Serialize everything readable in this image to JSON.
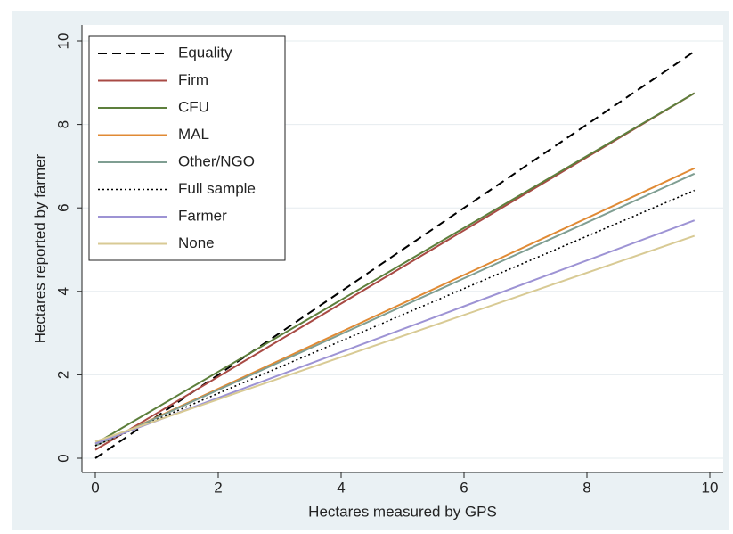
{
  "chart_data": {
    "type": "line",
    "x_label": "Hectares measured by GPS",
    "y_label": "Hectares reported by farmer",
    "x": [
      0,
      9.75
    ],
    "series": [
      {
        "name": "Equality",
        "color": "#000000",
        "dash": "dashed",
        "values": [
          0,
          9.75
        ]
      },
      {
        "name": "Firm",
        "color": "#a84a44",
        "dash": "solid",
        "values": [
          0.2,
          8.75
        ]
      },
      {
        "name": "CFU",
        "color": "#5d7f3c",
        "dash": "solid",
        "values": [
          0.35,
          8.75
        ]
      },
      {
        "name": "MAL",
        "color": "#e08a34",
        "dash": "solid",
        "values": [
          0.3,
          6.95
        ]
      },
      {
        "name": "Other/NGO",
        "color": "#7f9e92",
        "dash": "solid",
        "values": [
          0.3,
          6.82
        ]
      },
      {
        "name": "Full sample",
        "color": "#000000",
        "dash": "dotted",
        "values": [
          0.3,
          6.42
        ]
      },
      {
        "name": "Farmer",
        "color": "#9d93d4",
        "dash": "solid",
        "values": [
          0.35,
          5.7
        ]
      },
      {
        "name": "None",
        "color": "#d8ca94",
        "dash": "solid",
        "values": [
          0.4,
          5.33
        ]
      }
    ],
    "xlim": [
      0,
      10
    ],
    "ylim": [
      0,
      10
    ],
    "xticks": [
      0,
      2,
      4,
      6,
      8,
      10
    ],
    "yticks": [
      0,
      2,
      4,
      6,
      8,
      10
    ],
    "grid": true,
    "legend_position": "top-left"
  }
}
